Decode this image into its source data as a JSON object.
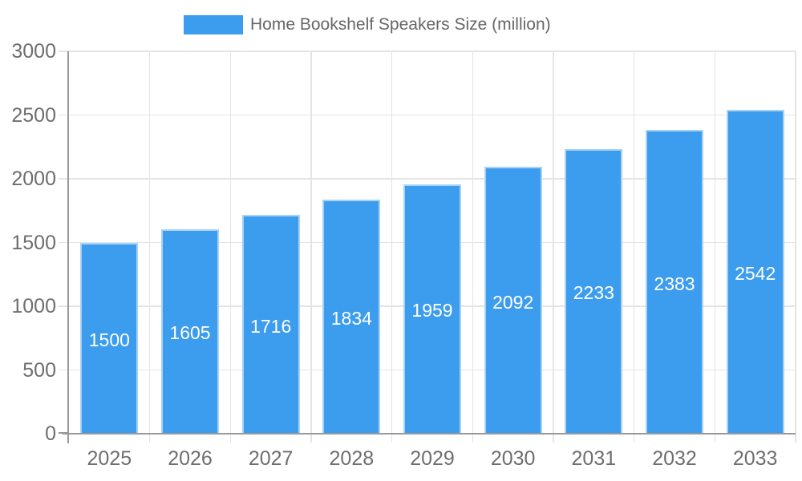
{
  "legend": {
    "label": "Home Bookshelf Speakers Size (million)"
  },
  "chart_data": {
    "type": "bar",
    "title": "Home Bookshelf Speakers Size (million)",
    "categories": [
      "2025",
      "2026",
      "2027",
      "2028",
      "2029",
      "2030",
      "2031",
      "2032",
      "2033"
    ],
    "values": [
      1500,
      1605,
      1716,
      1834,
      1959,
      2092,
      2233,
      2383,
      2542
    ],
    "series_name": "Home Bookshelf Speakers Size (million)",
    "xlabel": "",
    "ylabel": "",
    "ylim": [
      0,
      3000
    ],
    "y_ticks": [
      0,
      500,
      1000,
      1500,
      2000,
      2500,
      3000
    ],
    "grid": true,
    "legend_position": "top",
    "bar_labels": "inside-center",
    "colors": {
      "bar_fill": "#3c9cee",
      "bar_border": "#a8d2f4",
      "gridline": "#e4e4e4",
      "axis": "#999999",
      "tick_text": "#6e6e6e",
      "legend_text": "#666666",
      "bar_label_text": "#ffffff",
      "background": "#ffffff"
    }
  }
}
